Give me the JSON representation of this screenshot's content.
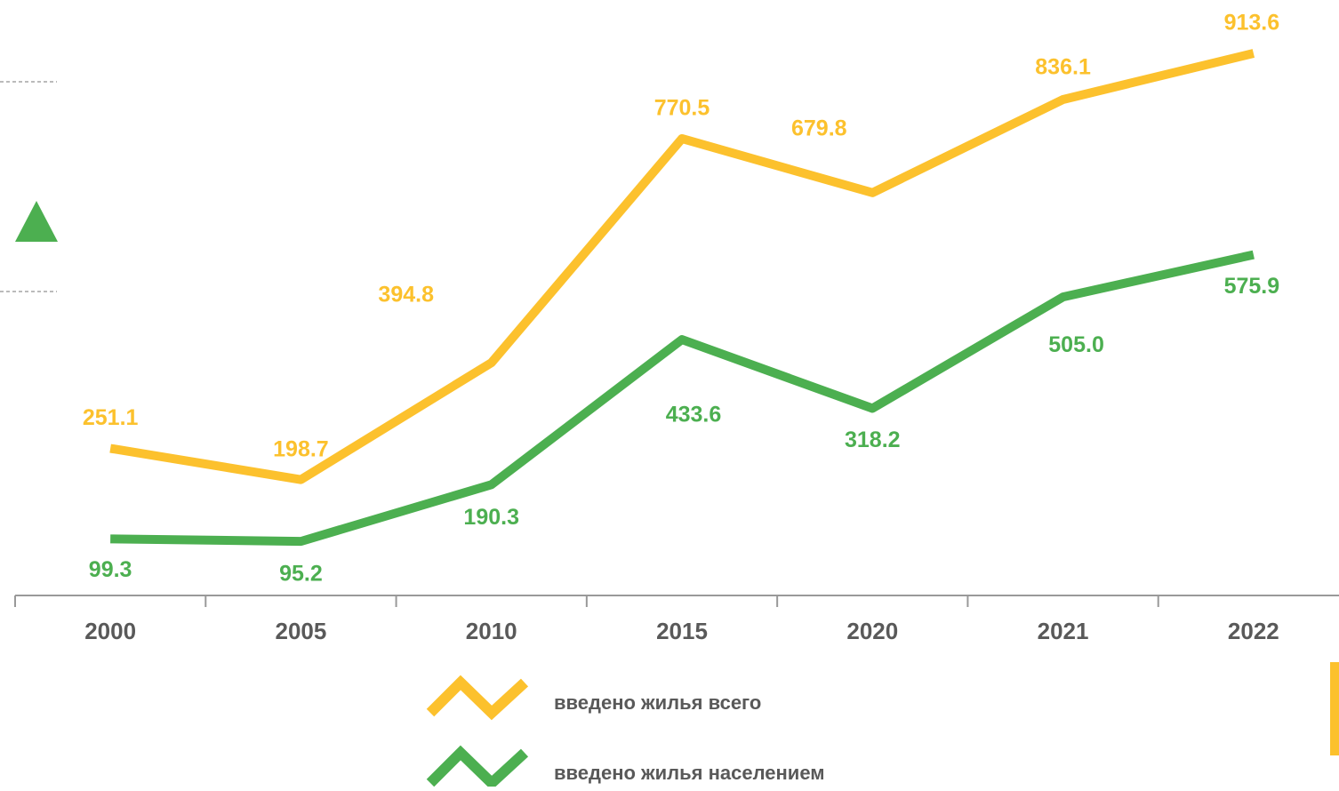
{
  "chart_data": {
    "type": "line",
    "categories": [
      "2000",
      "2005",
      "2010",
      "2015",
      "2020",
      "2021",
      "2022"
    ],
    "series": [
      {
        "name": "введено жилья всего",
        "color": "#fcc12d",
        "values": [
          251.1,
          198.7,
          394.8,
          770.5,
          679.8,
          836.1,
          913.6
        ],
        "value_labels": [
          "251.1",
          "198.7",
          "394.8",
          "770.5",
          "679.8",
          "836.1",
          "913.6"
        ]
      },
      {
        "name": "введено жилья населением",
        "color": "#4caf50",
        "values": [
          99.3,
          95.2,
          190.3,
          433.6,
          318.2,
          505.0,
          575.9
        ],
        "value_labels": [
          "99.3",
          "95.2",
          "190.3",
          "433.6",
          "318.2",
          "505.0",
          "575.9"
        ]
      }
    ],
    "ylim": [
      0,
      1000
    ]
  }
}
